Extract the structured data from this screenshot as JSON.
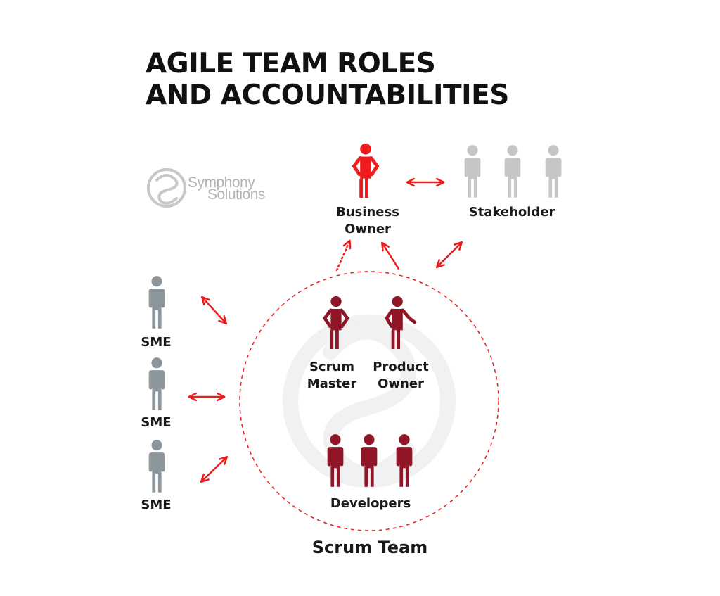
{
  "title": {
    "line1": "AGILE TEAM ROLES",
    "line2": "AND ACCOUNTABILITIES"
  },
  "logo": {
    "line1": "Symphony",
    "line2": "Solutions",
    "icon": "symphony-swirl-icon"
  },
  "roles": {
    "business_owner": {
      "line1": "Business",
      "line2": "Owner"
    },
    "stakeholder": "Stakeholder",
    "scrum_master": {
      "line1": "Scrum",
      "line2": "Master"
    },
    "product_owner": {
      "line1": "Product",
      "line2": "Owner"
    },
    "developers": "Developers",
    "sme_1": "SME",
    "sme_2": "SME",
    "sme_3": "SME"
  },
  "group_label": "Scrum Team",
  "icons": {
    "person": "person-icon",
    "arrow": "double-arrow-icon"
  },
  "colors": {
    "accent_red": "#ee1c1c",
    "team_red": "#8f1527",
    "sme_gray": "#8d969b",
    "stakeholder_gray": "#c6c6c6",
    "text": "#111111"
  }
}
